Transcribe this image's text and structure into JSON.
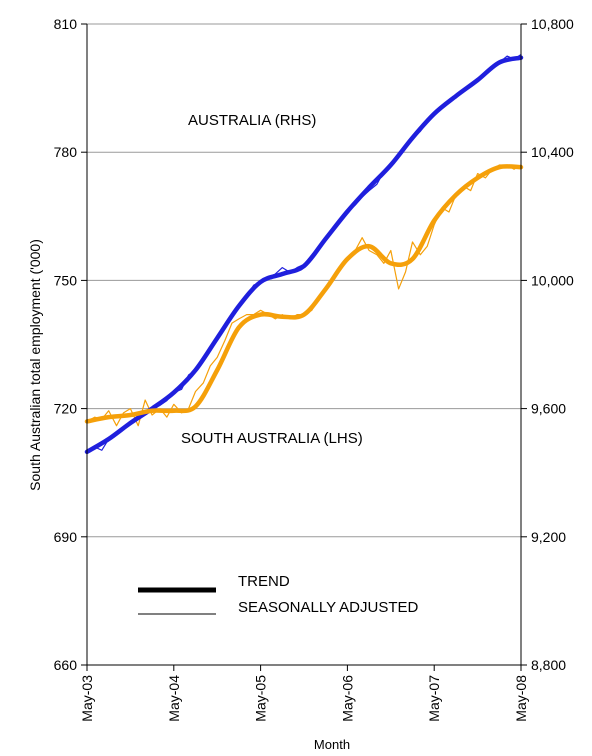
{
  "chart_data": {
    "type": "line",
    "xlabel": "Month",
    "ylabel": "South Australian total employment ('000)",
    "x_ticks": [
      "May-03",
      "May-04",
      "May-05",
      "May-06",
      "May-07",
      "May-08"
    ],
    "ylim": [
      660,
      810
    ],
    "y_ticks": [
      "660",
      "690",
      "720",
      "750",
      "780",
      "810"
    ],
    "y2lim": [
      8800,
      10800
    ],
    "y2_ticks": [
      "8,800",
      "9,200",
      "9,600",
      "10,000",
      "10,400",
      "10,800"
    ],
    "grid": "horizontal",
    "annotations": {
      "australia": "AUSTRALIA (RHS)",
      "south_australia": "SOUTH AUSTRALIA (LHS)"
    },
    "legend": {
      "position": "bottom-left",
      "trend": "TREND",
      "seasonally_adjusted": "SEASONALLY ADJUSTED"
    },
    "colors": {
      "australia": "#1f1fdd",
      "south_australia": "#f5a00a",
      "legend_lines": "#000000",
      "grid": "#9a9a9a"
    },
    "series": [
      {
        "name": "AUSTRALIA (RHS)",
        "axis": "right",
        "kind": "trend",
        "x": [
          2003.33,
          2003.58,
          2003.83,
          2004.08,
          2004.33,
          2004.58,
          2004.83,
          2005.08,
          2005.33,
          2005.58,
          2005.83,
          2006.08,
          2006.33,
          2006.58,
          2006.83,
          2007.08,
          2007.33,
          2007.58,
          2007.83,
          2008.08,
          2008.33
        ],
        "values": [
          9465,
          9505,
          9555,
          9600,
          9650,
          9720,
          9820,
          9920,
          9995,
          10020,
          10045,
          10130,
          10215,
          10290,
          10360,
          10445,
          10520,
          10575,
          10625,
          10680,
          10695
        ]
      },
      {
        "name": "AUSTRALIA (RHS)",
        "axis": "right",
        "kind": "seasonally_adjusted",
        "x": [
          2003.33,
          2003.42,
          2003.5,
          2003.58,
          2003.67,
          2003.75,
          2003.83,
          2003.92,
          2004.0,
          2004.08,
          2004.17,
          2004.25,
          2004.33,
          2004.42,
          2004.5,
          2004.58,
          2004.67,
          2004.75,
          2004.83,
          2004.92,
          2005.0,
          2005.08,
          2005.17,
          2005.25,
          2005.33,
          2005.42,
          2005.5,
          2005.58,
          2005.67,
          2005.75,
          2005.83,
          2005.92,
          2006.0,
          2006.08,
          2006.17,
          2006.25,
          2006.33,
          2006.42,
          2006.5,
          2006.58,
          2006.67,
          2006.75,
          2006.83,
          2006.92,
          2007.0,
          2007.08,
          2007.17,
          2007.25,
          2007.33,
          2007.42,
          2007.5,
          2007.58,
          2007.67,
          2007.75,
          2007.83,
          2007.92,
          2008.0,
          2008.08,
          2008.17,
          2008.25,
          2008.33
        ],
        "values": [
          9465,
          9480,
          9470,
          9505,
          9520,
          9535,
          9560,
          9570,
          9590,
          9600,
          9610,
          9625,
          9650,
          9660,
          9705,
          9720,
          9750,
          9790,
          9820,
          9855,
          9885,
          9920,
          9950,
          9985,
          9995,
          10010,
          10020,
          10040,
          10025,
          10040,
          10050,
          10080,
          10105,
          10130,
          10160,
          10185,
          10215,
          10235,
          10260,
          10280,
          10300,
          10340,
          10360,
          10385,
          10415,
          10445,
          10465,
          10495,
          10520,
          10545,
          10560,
          10575,
          10590,
          10610,
          10625,
          10645,
          10660,
          10680,
          10700,
          10690,
          10705
        ]
      },
      {
        "name": "SOUTH AUSTRALIA (LHS)",
        "axis": "left",
        "kind": "trend",
        "x": [
          2003.33,
          2003.58,
          2003.83,
          2004.08,
          2004.33,
          2004.58,
          2004.83,
          2005.08,
          2005.33,
          2005.58,
          2005.83,
          2006.08,
          2006.33,
          2006.58,
          2006.83,
          2007.08,
          2007.33,
          2007.58,
          2007.83,
          2008.08,
          2008.33
        ],
        "values": [
          717,
          718,
          718.5,
          719.5,
          719.5,
          720.5,
          729,
          739,
          742,
          741.5,
          742,
          748,
          755,
          758,
          754,
          755,
          764,
          770,
          774,
          776.5,
          776.5
        ]
      },
      {
        "name": "SOUTH AUSTRALIA (LHS)",
        "axis": "left",
        "kind": "seasonally_adjusted",
        "x": [
          2003.33,
          2003.42,
          2003.5,
          2003.58,
          2003.67,
          2003.75,
          2003.83,
          2003.92,
          2004.0,
          2004.08,
          2004.17,
          2004.25,
          2004.33,
          2004.42,
          2004.5,
          2004.58,
          2004.67,
          2004.75,
          2004.83,
          2004.92,
          2005.0,
          2005.08,
          2005.17,
          2005.25,
          2005.33,
          2005.42,
          2005.5,
          2005.58,
          2005.67,
          2005.75,
          2005.83,
          2005.92,
          2006.0,
          2006.08,
          2006.17,
          2006.25,
          2006.33,
          2006.42,
          2006.5,
          2006.58,
          2006.67,
          2006.75,
          2006.83,
          2006.92,
          2007.0,
          2007.08,
          2007.17,
          2007.25,
          2007.33,
          2007.42,
          2007.5,
          2007.58,
          2007.67,
          2007.75,
          2007.83,
          2007.92,
          2008.0,
          2008.08,
          2008.17,
          2008.25,
          2008.33
        ],
        "values": [
          717,
          718,
          717.5,
          719.5,
          716,
          719,
          720,
          716,
          722,
          718.5,
          720,
          718,
          721,
          719,
          720,
          724,
          726,
          730,
          732,
          736,
          740,
          741,
          742,
          742,
          743,
          742,
          741,
          742,
          741,
          742,
          742,
          743,
          746,
          748,
          750,
          753,
          755,
          757,
          760,
          757,
          756,
          754,
          757,
          748,
          752,
          759,
          756,
          758,
          763,
          767,
          766,
          770,
          772,
          771,
          775,
          774,
          776,
          777,
          777,
          776,
          777
        ]
      }
    ]
  }
}
